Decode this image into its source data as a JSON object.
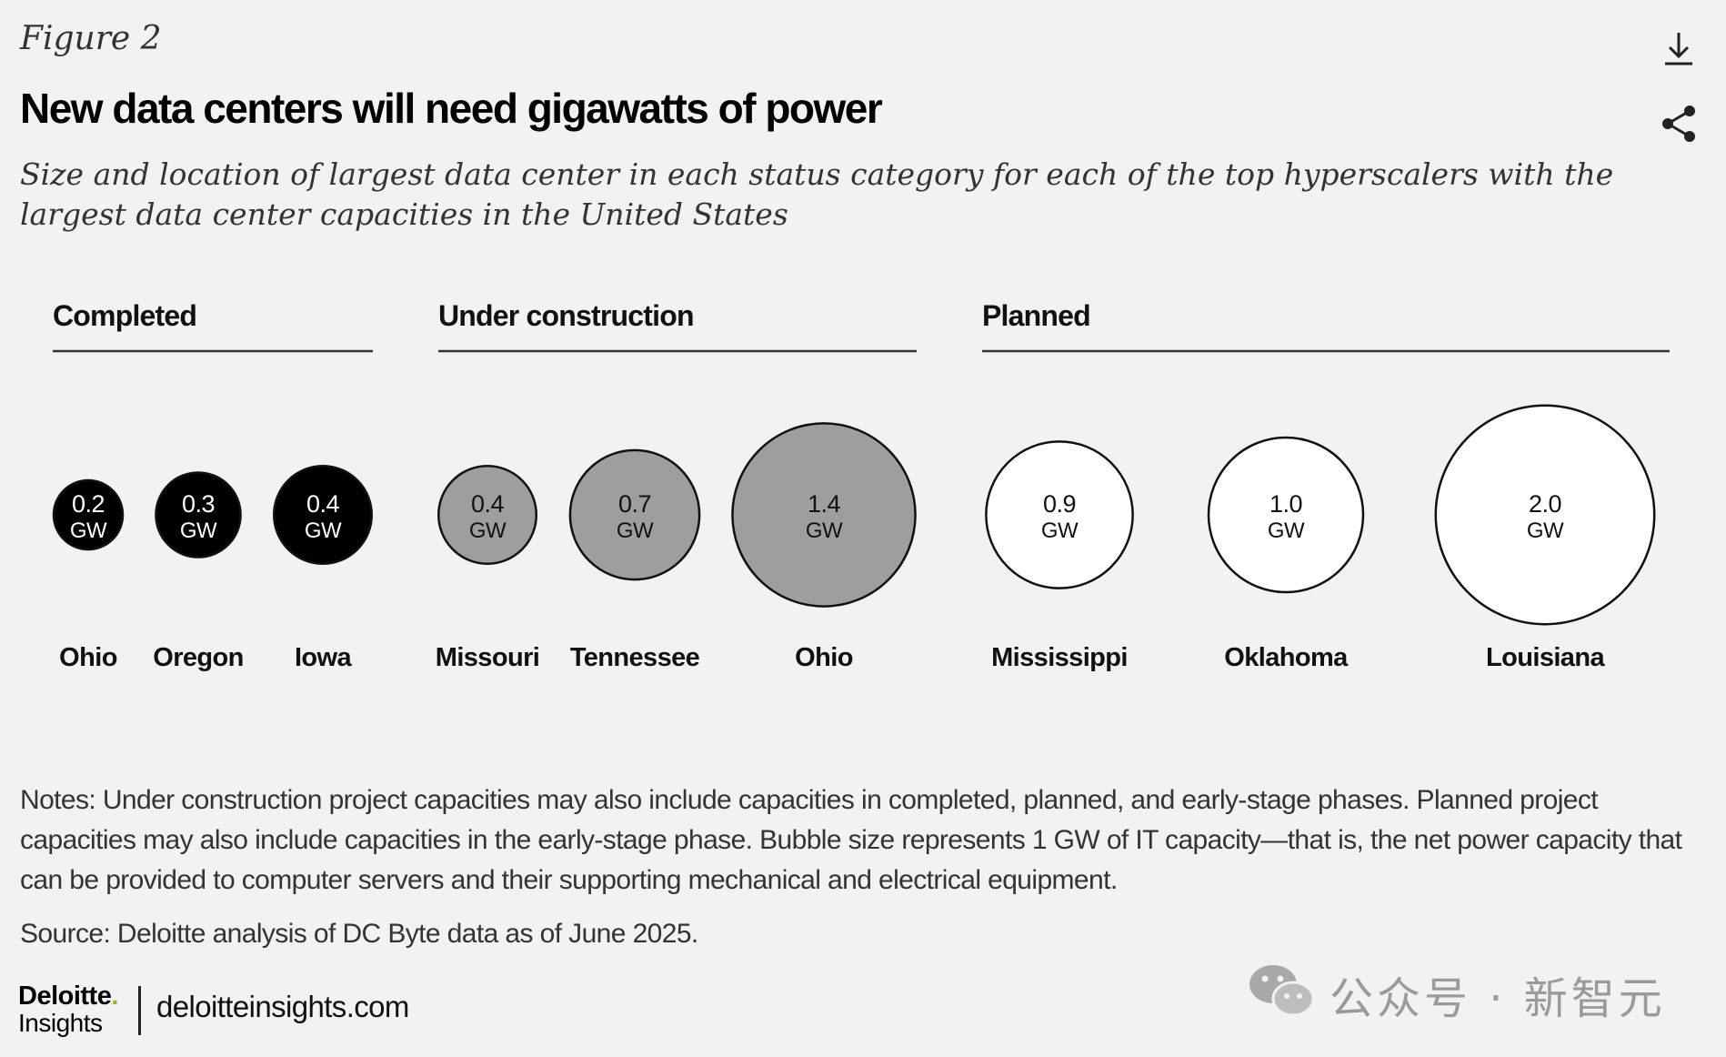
{
  "header": {
    "figure_label": "Figure 2",
    "title": "New data centers will need gigawatts of power",
    "subtitle": "Size and location of largest data center in each status category for each of the top hyperscalers with the largest data center capacities in the United States",
    "download_icon": "download-icon",
    "share_icon": "share-icon"
  },
  "chart_data": {
    "type": "bubble",
    "unit": "GW",
    "groups": [
      {
        "name": "Completed",
        "color": "#000000",
        "items": [
          {
            "label": "Ohio",
            "value": 0.2
          },
          {
            "label": "Oregon",
            "value": 0.3
          },
          {
            "label": "Iowa",
            "value": 0.4
          }
        ]
      },
      {
        "name": "Under construction",
        "color": "#9e9e9e",
        "items": [
          {
            "label": "Missouri",
            "value": 0.4
          },
          {
            "label": "Tennessee",
            "value": 0.7
          },
          {
            "label": "Ohio",
            "value": 1.4
          }
        ]
      },
      {
        "name": "Planned",
        "color": "#ffffff",
        "items": [
          {
            "label": "Mississippi",
            "value": 0.9
          },
          {
            "label": "Oklahoma",
            "value": 1.0
          },
          {
            "label": "Louisiana",
            "value": 2.0
          }
        ]
      }
    ]
  },
  "footer": {
    "notes": "Notes: Under construction project capacities may also include capacities in completed, planned, and early-stage phases. Planned project capacities may also include capacities in the early-stage phase. Bubble size represents 1 GW of IT capacity—that is, the net power capacity that can be provided to computer servers and their supporting mechanical and electrical equipment.",
    "source": "Source: Deloitte analysis of DC Byte data as of June 2025.",
    "logo_top": "Deloitte",
    "logo_dot": ".",
    "logo_bottom": "Insights",
    "site": "deloitteinsights.com"
  },
  "watermark": {
    "text": "公众号 · 新智元",
    "icon": "wechat-icon"
  }
}
